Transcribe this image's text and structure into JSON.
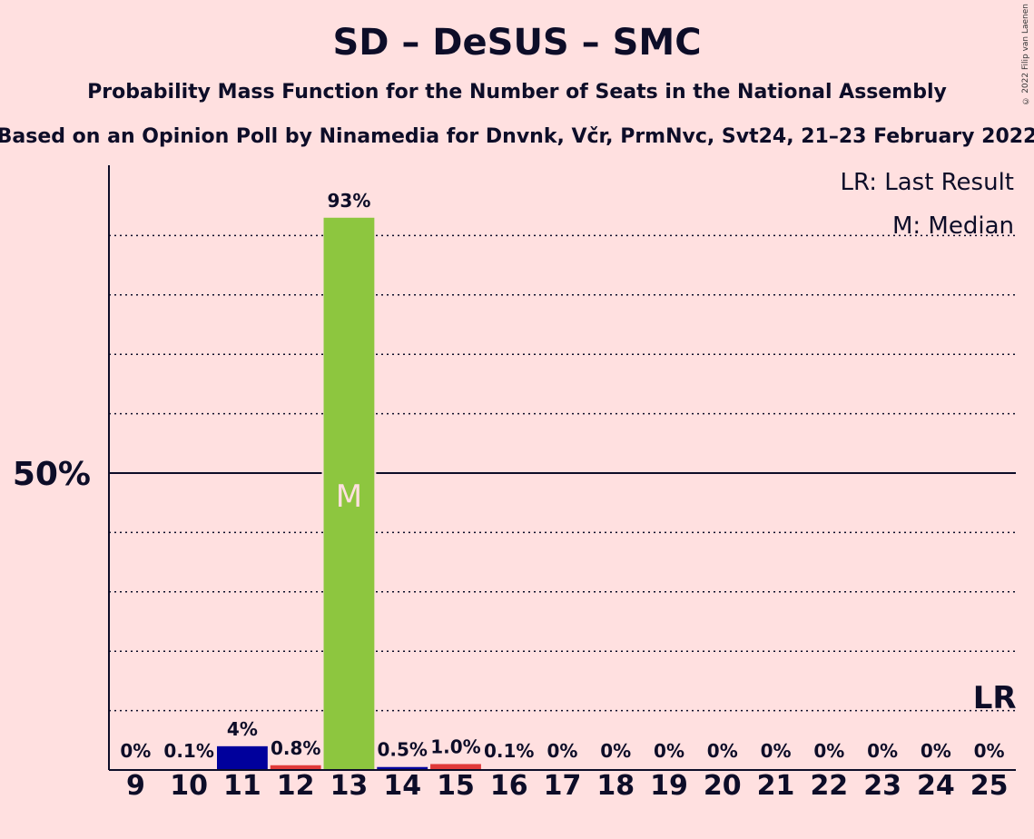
{
  "chart_data": {
    "type": "bar",
    "title": "SD – DeSUS – SMC",
    "subtitle": "Probability Mass Function for the Number of Seats in the National Assembly",
    "source": "Based on an Opinion Poll by Ninamedia for Dnvnk, Včr, PrmNvc, Svt24, 21–23 February 2022",
    "copyright": "© 2022 Filip van Laenen",
    "categories": [
      "9",
      "10",
      "11",
      "12",
      "13",
      "14",
      "15",
      "16",
      "17",
      "18",
      "19",
      "20",
      "21",
      "22",
      "23",
      "24",
      "25"
    ],
    "values": [
      0,
      0.1,
      4,
      0.8,
      93,
      0.5,
      1.0,
      0.1,
      0,
      0,
      0,
      0,
      0,
      0,
      0,
      0,
      0
    ],
    "labels": [
      "0%",
      "0.1%",
      "4%",
      "0.8%",
      "93%",
      "0.5%",
      "1.0%",
      "0.1%",
      "0%",
      "0%",
      "0%",
      "0%",
      "0%",
      "0%",
      "0%",
      "0%",
      "0%"
    ],
    "bar_colors": [
      "#1a1a9a",
      "#1a1a9a",
      "#00009c",
      "#e03a3a",
      "#8dc63f",
      "#00009c",
      "#e03a3a",
      "#1a1a9a",
      "#1a1a9a",
      "#1a1a9a",
      "#1a1a9a",
      "#1a1a9a",
      "#1a1a9a",
      "#1a1a9a",
      "#1a1a9a",
      "#1a1a9a",
      "#1a1a9a"
    ],
    "ylim": [
      0,
      100
    ],
    "yticks": [
      {
        "value": 50,
        "label": "50%"
      }
    ],
    "grid_dotted": [
      10,
      20,
      30,
      40,
      60,
      70,
      80,
      90
    ],
    "median": {
      "category": "13",
      "label": "M"
    },
    "last_result": {
      "category": "25",
      "label": "LR"
    },
    "legend": [
      "LR: Last Result",
      "M: Median"
    ],
    "legend_position": "top-right"
  }
}
